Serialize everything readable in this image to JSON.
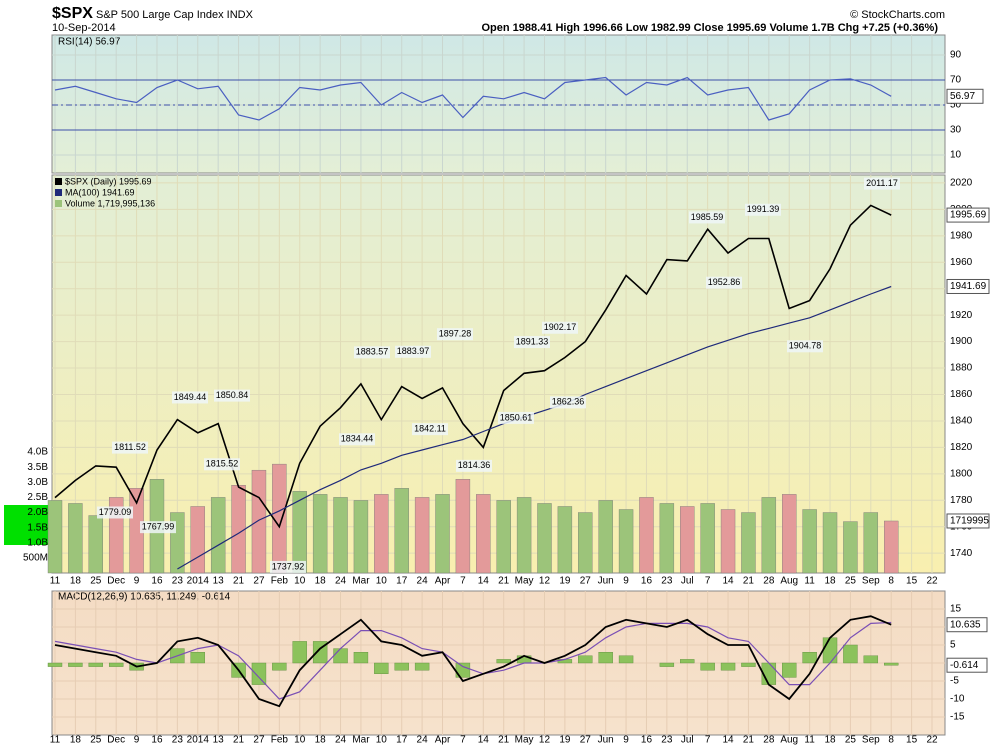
{
  "chart_data": {
    "type": "stock",
    "title": "$SPX",
    "subtitle": "S&P 500 Large Cap Index INDX",
    "date": "10-Sep-2014",
    "quote": "Open 1988.41 High 1996.66 Low 1982.99 Close 1995.69 Volume 1.7B Chg +7.25 (+0.36%)",
    "source": "© StockCharts.com",
    "categories": [
      "11",
      "18",
      "25",
      "Dec",
      "9",
      "16",
      "23",
      "2014",
      "13",
      "21",
      "27",
      "Feb",
      "10",
      "18",
      "24",
      "Mar",
      "10",
      "17",
      "24",
      "Apr",
      "7",
      "14",
      "21",
      "May",
      "12",
      "19",
      "27",
      "Jun",
      "9",
      "16",
      "23",
      "Jul",
      "7",
      "14",
      "21",
      "28",
      "Aug",
      "11",
      "18",
      "25",
      "Sep",
      "8",
      "15",
      "22"
    ],
    "series": [
      {
        "name": "$SPX (Daily) 1995.69",
        "color": "#000000",
        "values": [
          1782,
          1795,
          1806,
          1805,
          1778,
          1818,
          1841,
          1831,
          1838,
          1790,
          1782,
          1760,
          1808,
          1836,
          1850,
          1868,
          1841,
          1866,
          1857,
          1865,
          1838,
          1820,
          1863,
          1876,
          1878,
          1888,
          1900,
          1924,
          1950,
          1936,
          1962,
          1961,
          1985,
          1967,
          1978,
          1978,
          1925,
          1931,
          1955,
          1988,
          2003,
          1995.69,
          null,
          null
        ]
      },
      {
        "name": "MA(100) 1941.69",
        "color": "#1f2a7a",
        "values": [
          null,
          null,
          null,
          null,
          null,
          null,
          1728,
          1737,
          1746,
          1755,
          1765,
          1772,
          1780,
          1788,
          1795,
          1803,
          1808,
          1814,
          1818,
          1822,
          1826,
          1832,
          1838,
          1843,
          1848,
          1853,
          1860,
          1866,
          1872,
          1878,
          1884,
          1890,
          1896,
          1901,
          1906,
          1910,
          1914,
          1918,
          1924,
          1930,
          1936,
          1941.69,
          null,
          null
        ]
      },
      {
        "name": "Volume 1,719,995,136",
        "color": "#9cc47a",
        "axis": "y2",
        "values": [
          2.4,
          2.3,
          1.9,
          2.5,
          2.8,
          3.1,
          2.0,
          2.2,
          2.5,
          2.9,
          3.4,
          3.6,
          2.7,
          2.6,
          2.5,
          2.4,
          2.6,
          2.8,
          2.5,
          2.6,
          3.1,
          2.6,
          2.4,
          2.5,
          2.3,
          2.2,
          2.0,
          2.4,
          2.1,
          2.5,
          2.3,
          2.2,
          2.3,
          2.1,
          2.0,
          2.5,
          2.6,
          2.1,
          2.0,
          1.7,
          2.0,
          1.72,
          null,
          null
        ]
      }
    ],
    "down_color": "#e39a9a",
    "ylim": [
      1725,
      2026
    ],
    "yticks": [
      1740,
      1760,
      1780,
      1800,
      1820,
      1840,
      1860,
      1880,
      1900,
      1920,
      1940,
      1960,
      1980,
      2000,
      2020
    ],
    "y2lim": [
      0,
      13.16
    ],
    "y2ticks": [
      {
        "value": 0.5,
        "label": "500M"
      },
      {
        "value": 1,
        "label": "1.0B"
      },
      {
        "value": 1.5,
        "label": "1.5B"
      },
      {
        "value": 2,
        "label": "2.0B"
      },
      {
        "value": 2.5,
        "label": "2.5B"
      },
      {
        "value": 3,
        "label": "3.0B"
      },
      {
        "value": 3.5,
        "label": "3.5B"
      },
      {
        "value": 4,
        "label": "4.0B"
      }
    ],
    "last_labels": [
      1995.69,
      1941.69,
      1719995
    ],
    "annotations": [
      1811.52,
      1779.09,
      1767.99,
      1849.44,
      1850.84,
      1815.52,
      1737.92,
      1834.44,
      1883.57,
      1883.97,
      1842.11,
      1897.28,
      1814.36,
      1850.61,
      1891.33,
      1902.17,
      1862.36,
      1985.59,
      1952.86,
      1991.39,
      1904.78,
      2011.17
    ],
    "grid": true,
    "rsi": {
      "label": "RSI(14) 56.97",
      "color": "#4a5fc1",
      "values": [
        62,
        65,
        60,
        55,
        52,
        64,
        70,
        63,
        65,
        42,
        38,
        47,
        64,
        62,
        66,
        68,
        50,
        60,
        52,
        58,
        40,
        57,
        55,
        60,
        55,
        68,
        70,
        72,
        58,
        68,
        66,
        72,
        58,
        62,
        64,
        38,
        43,
        62,
        70,
        71,
        66,
        56.97,
        null,
        null
      ],
      "ylim": [
        -4.4,
        106
      ],
      "yticks": [
        10,
        30,
        50,
        70,
        90
      ],
      "levels": [
        30,
        50,
        70
      ],
      "last": 56.97
    },
    "macd": {
      "legend": "MACD(12,26,9) 10.635, 11.249, -0.614",
      "macd": [
        5,
        4,
        3,
        2,
        -1,
        0,
        6,
        7,
        5,
        -2,
        -10,
        -12,
        -2,
        4,
        8,
        12,
        6,
        5,
        2,
        3,
        -5,
        -3,
        -1,
        2,
        0,
        2,
        5,
        10,
        12,
        11,
        10,
        12,
        8,
        5,
        5,
        -6,
        -10,
        -3,
        7,
        12,
        13,
        10.635,
        null,
        null
      ],
      "signal": [
        6,
        5,
        4,
        3,
        1,
        0,
        2,
        4,
        5,
        2,
        -4,
        -10,
        -8,
        -2,
        4,
        9,
        9,
        7,
        4,
        3,
        -1,
        -3,
        -2,
        0,
        0,
        1,
        3,
        7,
        10,
        11,
        11,
        11,
        10,
        7,
        6,
        0,
        -6,
        -6,
        0,
        7,
        11,
        11.249,
        null,
        null
      ],
      "histogram": [
        -1,
        -1,
        -1,
        -1,
        -2,
        0,
        4,
        3,
        0,
        -4,
        -6,
        -2,
        6,
        6,
        4,
        3,
        -3,
        -2,
        -2,
        0,
        -4,
        0,
        1,
        2,
        0,
        1,
        2,
        3,
        2,
        0,
        -1,
        1,
        -2,
        -2,
        -1,
        -6,
        -4,
        3,
        7,
        5,
        2,
        -0.614,
        null,
        null
      ],
      "macd_color": "#000000",
      "signal_color": "#7a4fb5",
      "histogram_color": "#8cc25c",
      "ylim": [
        -20,
        20
      ],
      "yticks": [
        15,
        10,
        5,
        0,
        -5,
        -10,
        -15
      ],
      "last_labels": [
        10.635,
        -0.614
      ]
    }
  }
}
